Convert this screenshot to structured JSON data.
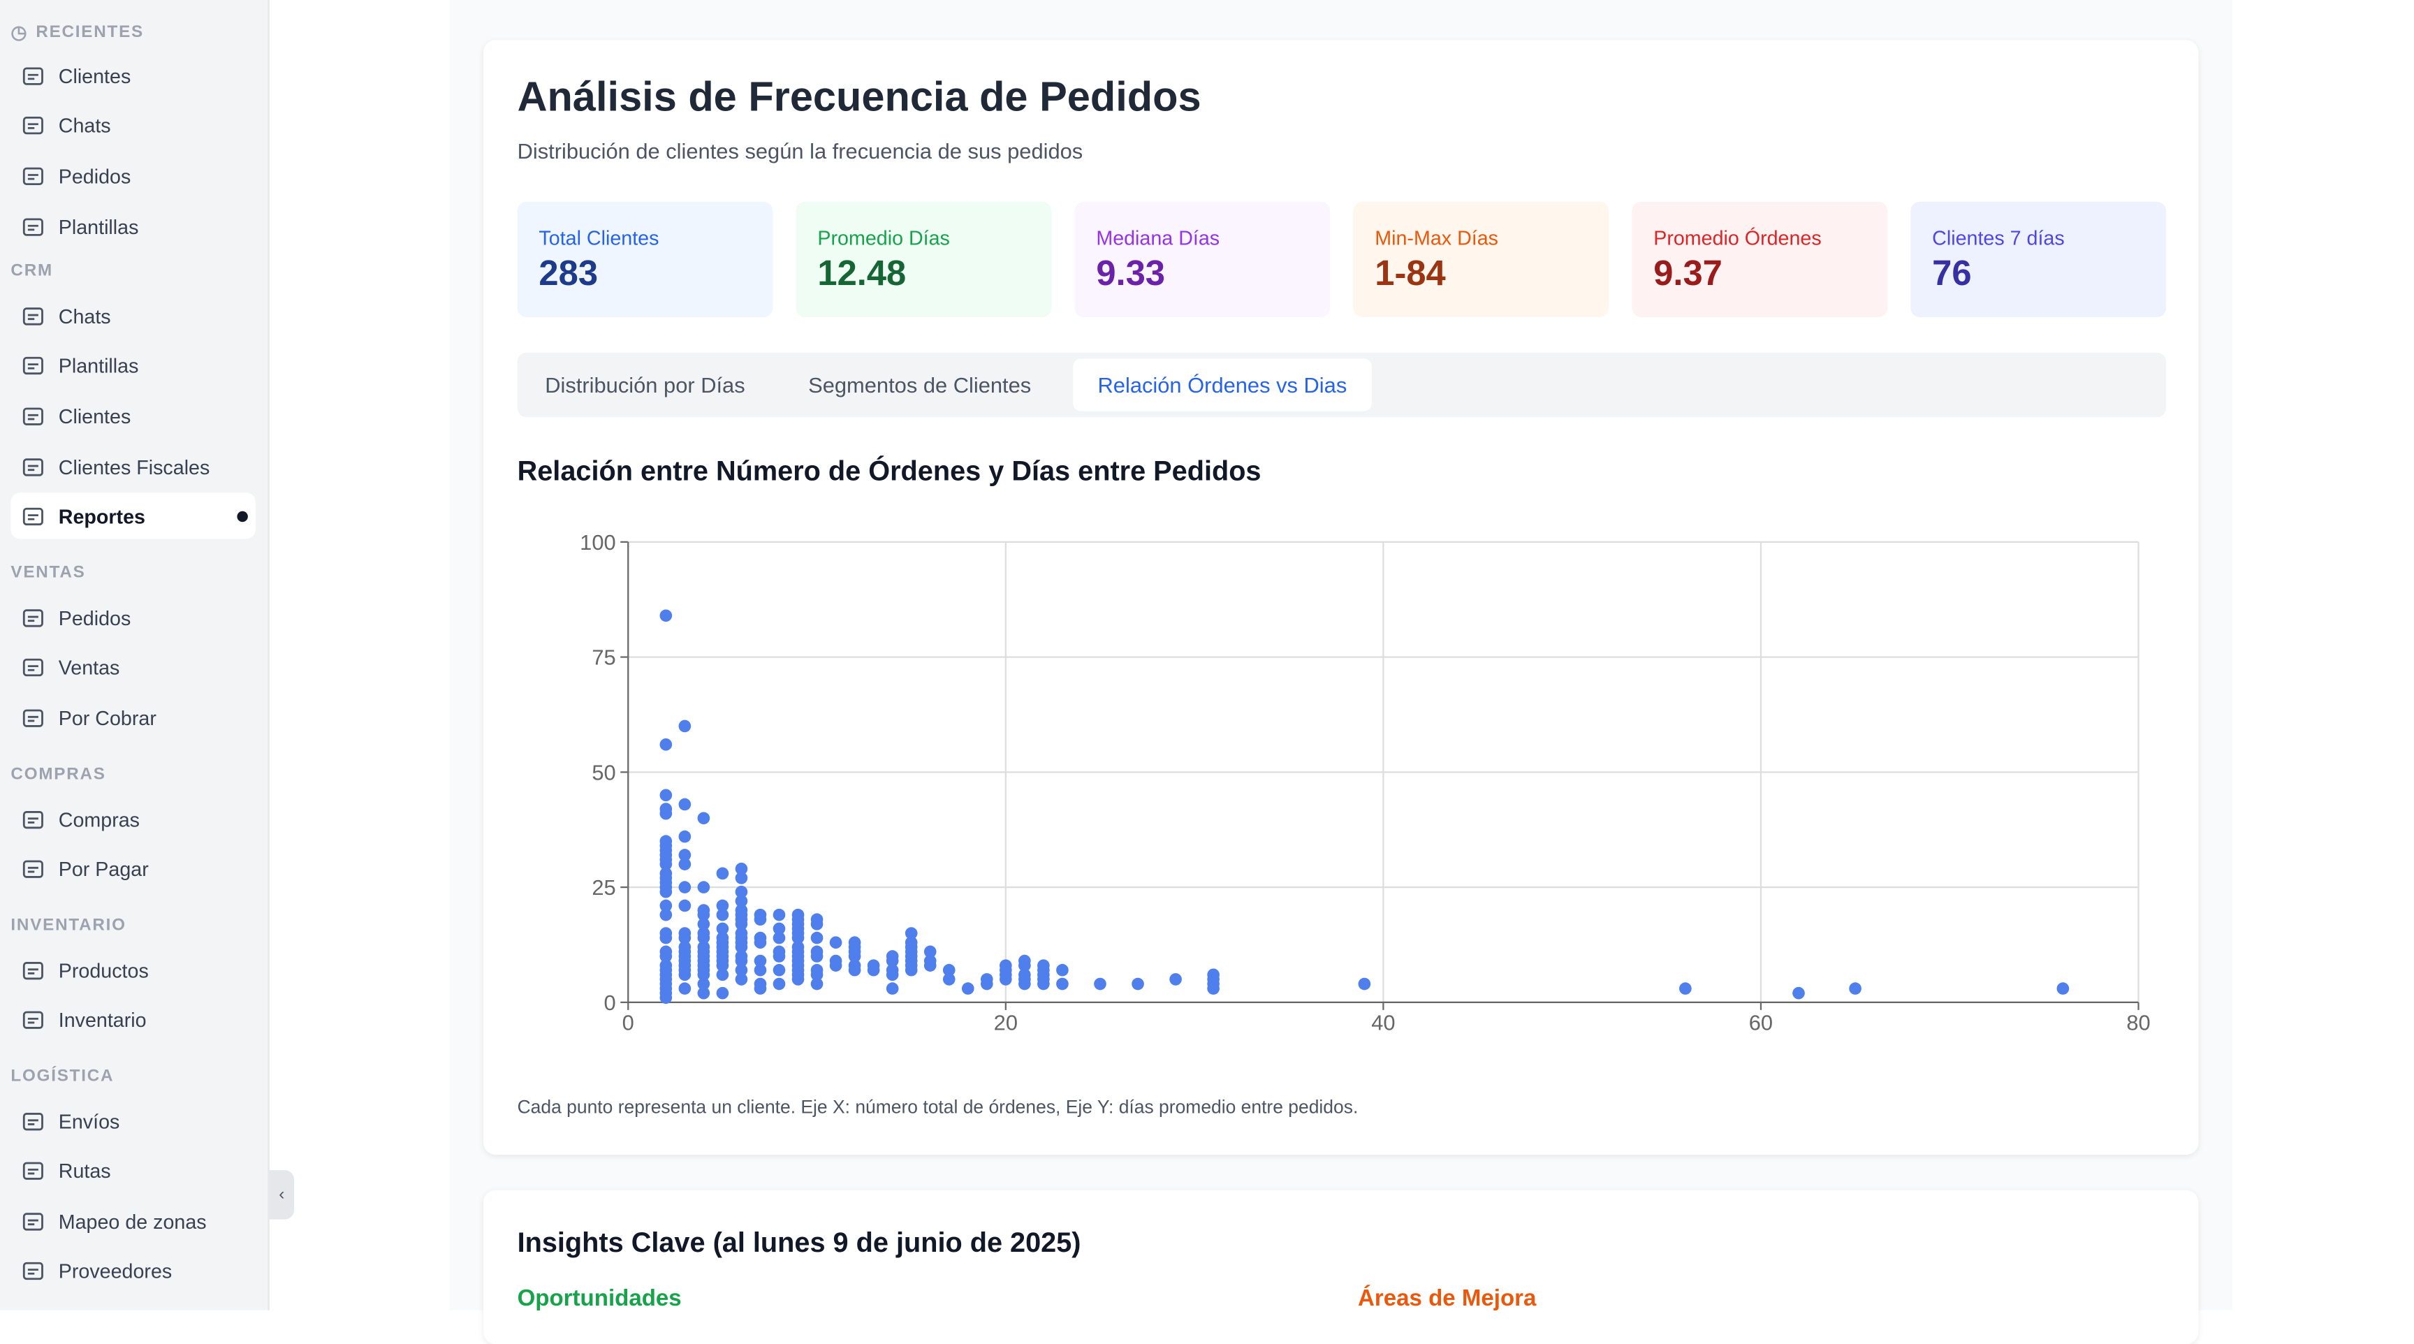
{
  "sidebar": {
    "sections": [
      {
        "title": "RECIENTES",
        "icon": "clock-icon",
        "items": [
          {
            "label": "Clientes",
            "icon": "contact-icon"
          },
          {
            "label": "Chats",
            "icon": "inbox-icon"
          },
          {
            "label": "Pedidos",
            "icon": "cart-icon"
          },
          {
            "label": "Plantillas",
            "icon": "book-icon"
          }
        ]
      },
      {
        "title": "CRM",
        "items": [
          {
            "label": "Chats",
            "icon": "inbox-icon"
          },
          {
            "label": "Plantillas",
            "icon": "book-icon"
          },
          {
            "label": "Clientes",
            "icon": "contact-icon"
          },
          {
            "label": "Clientes Fiscales",
            "icon": "user-check-icon"
          },
          {
            "label": "Reportes",
            "icon": "scroll-icon",
            "active": true
          }
        ]
      },
      {
        "title": "VENTAS",
        "items": [
          {
            "label": "Pedidos",
            "icon": "cart-icon"
          },
          {
            "label": "Ventas",
            "icon": "receipt-icon"
          },
          {
            "label": "Por Cobrar",
            "icon": "dollar-icon"
          }
        ]
      },
      {
        "title": "COMPRAS",
        "items": [
          {
            "label": "Compras",
            "icon": "truck-icon"
          },
          {
            "label": "Por Pagar",
            "icon": "wallet-icon"
          }
        ]
      },
      {
        "title": "INVENTARIO",
        "items": [
          {
            "label": "Productos",
            "icon": "package-icon"
          },
          {
            "label": "Inventario",
            "icon": "warehouse-icon"
          }
        ]
      },
      {
        "title": "LOGÍSTICA",
        "items": [
          {
            "label": "Envíos",
            "icon": "box-icon"
          },
          {
            "label": "Rutas",
            "icon": "route-icon"
          },
          {
            "label": "Mapeo de zonas",
            "icon": "map-pin-icon"
          },
          {
            "label": "Proveedores",
            "icon": "building-icon"
          }
        ]
      }
    ]
  },
  "page": {
    "title": "Análisis de Frecuencia de Pedidos",
    "subtitle": "Distribución de clientes según la frecuencia de sus pedidos"
  },
  "stats": [
    {
      "label": "Total Clientes",
      "value": "283",
      "bg": "#eff6ff",
      "fg": "#2563eb",
      "vc": "#1e3a8a"
    },
    {
      "label": "Promedio Días",
      "value": "12.48",
      "bg": "#f0fdf4",
      "fg": "#16a34a",
      "vc": "#166534"
    },
    {
      "label": "Mediana Días",
      "value": "9.33",
      "bg": "#faf5ff",
      "fg": "#9333ea",
      "vc": "#6b21a8"
    },
    {
      "label": "Min-Max Días",
      "value": "1-84",
      "bg": "#fff7ed",
      "fg": "#ea580c",
      "vc": "#9a3412"
    },
    {
      "label": "Promedio Órdenes",
      "value": "9.37",
      "bg": "#fef2f2",
      "fg": "#dc2626",
      "vc": "#991b1b"
    },
    {
      "label": "Clientes 7 días",
      "value": "76",
      "bg": "#eef2ff",
      "fg": "#4f46e5",
      "vc": "#3730a3"
    }
  ],
  "tabs": [
    {
      "label": "Distribución por Días"
    },
    {
      "label": "Segmentos de Clientes"
    },
    {
      "label": "Relación Órdenes vs Dias",
      "active": true
    }
  ],
  "chart_title": "Relación entre Número de Órdenes y Días entre Pedidos",
  "chart_note": "Cada punto representa un cliente. Eje X: número total de órdenes, Eje Y: días promedio entre pedidos.",
  "chart_data": {
    "type": "scatter",
    "xlim": [
      0,
      80
    ],
    "ylim": [
      0,
      100
    ],
    "xticks": [
      0,
      20,
      40,
      60,
      80
    ],
    "yticks": [
      0,
      25,
      50,
      75,
      100
    ],
    "grid": true,
    "color": "#4f7fec",
    "columns": [
      {
        "x": 2,
        "y": [
          84,
          56,
          45,
          42,
          41,
          35,
          34,
          33,
          32,
          31,
          30,
          28,
          27,
          26,
          25,
          24,
          21,
          19,
          15,
          14,
          11,
          10,
          8,
          7,
          6,
          5,
          4,
          3,
          2,
          1
        ]
      },
      {
        "x": 3,
        "y": [
          60,
          43,
          36,
          32,
          30,
          25,
          21,
          15,
          14,
          12,
          11,
          10,
          9,
          8,
          7,
          6,
          3
        ]
      },
      {
        "x": 4,
        "y": [
          40,
          25,
          20,
          19,
          17,
          15,
          14,
          12,
          11,
          10,
          9,
          8,
          7,
          6,
          4,
          2
        ]
      },
      {
        "x": 5,
        "y": [
          28,
          21,
          19,
          16,
          14,
          13,
          12,
          11,
          10,
          9,
          8,
          6,
          2
        ]
      },
      {
        "x": 6,
        "y": [
          29,
          27,
          24,
          22,
          20,
          19,
          18,
          17,
          15,
          14,
          13,
          12,
          10,
          9,
          7,
          5
        ]
      },
      {
        "x": 7,
        "y": [
          19,
          18,
          14,
          13,
          9,
          7,
          4,
          3
        ]
      },
      {
        "x": 8,
        "y": [
          19,
          16,
          14,
          11,
          10,
          7,
          4
        ]
      },
      {
        "x": 9,
        "y": [
          19,
          18,
          17,
          16,
          15,
          14,
          12,
          11,
          10,
          9,
          8,
          7,
          6,
          5
        ]
      },
      {
        "x": 10,
        "y": [
          18,
          17,
          14,
          11,
          10,
          7,
          6,
          4
        ]
      },
      {
        "x": 11,
        "y": [
          13,
          9,
          8
        ]
      },
      {
        "x": 12,
        "y": [
          13,
          12,
          11,
          10,
          8,
          7
        ]
      },
      {
        "x": 13,
        "y": [
          8,
          7
        ]
      },
      {
        "x": 14,
        "y": [
          10,
          9,
          7,
          6,
          3
        ]
      },
      {
        "x": 15,
        "y": [
          15,
          13,
          12,
          11,
          10,
          9,
          8,
          7
        ]
      },
      {
        "x": 16,
        "y": [
          11,
          9,
          8
        ]
      },
      {
        "x": 17,
        "y": [
          7,
          5
        ]
      },
      {
        "x": 18,
        "y": [
          3
        ]
      },
      {
        "x": 19,
        "y": [
          5,
          4
        ]
      },
      {
        "x": 20,
        "y": [
          8,
          7,
          6,
          5
        ]
      },
      {
        "x": 21,
        "y": [
          9,
          8,
          6,
          5,
          4
        ]
      },
      {
        "x": 22,
        "y": [
          8,
          7,
          6,
          5,
          4
        ]
      },
      {
        "x": 23,
        "y": [
          7,
          4
        ]
      },
      {
        "x": 25,
        "y": [
          4
        ]
      },
      {
        "x": 27,
        "y": [
          4
        ]
      },
      {
        "x": 29,
        "y": [
          5
        ]
      },
      {
        "x": 31,
        "y": [
          6,
          5,
          4,
          3
        ]
      },
      {
        "x": 39,
        "y": [
          4
        ]
      },
      {
        "x": 56,
        "y": [
          3
        ]
      },
      {
        "x": 62,
        "y": [
          2
        ]
      },
      {
        "x": 65,
        "y": [
          3
        ]
      },
      {
        "x": 76,
        "y": [
          3
        ]
      }
    ]
  },
  "insights": {
    "title": "Insights Clave (al lunes 9 de junio de 2025)",
    "opportunities": "Oportunidades",
    "improvements": "Áreas de Mejora"
  }
}
